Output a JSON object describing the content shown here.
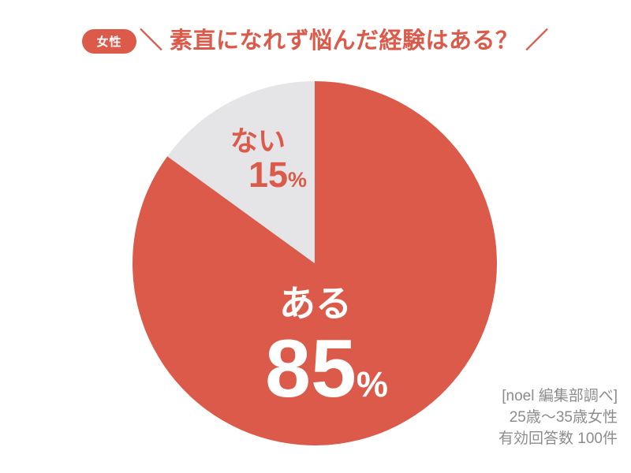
{
  "header": {
    "badge_label": "女性",
    "title": "＼ 素直になれず悩んだ経験はある？ ／"
  },
  "chart_data": {
    "type": "pie",
    "title": "素直になれず悩んだ経験はある？",
    "group": "女性",
    "start_angle_deg": 0,
    "direction": "clockwise",
    "slices": [
      {
        "label": "ある",
        "value": 85,
        "unit": "%",
        "color": "#dc5a4a",
        "label_color": "#ffffff"
      },
      {
        "label": "ない",
        "value": 15,
        "unit": "%",
        "color": "#e5e4e6",
        "label_color": "#dc5a4a"
      }
    ],
    "source": "[noel 編集部調べ]",
    "sample": "25歳～35歳女性",
    "valid_responses": "有効回答数 100件"
  },
  "footer": {
    "lines": [
      "[noel 編集部調べ]",
      "25歳～35歳女性",
      "有効回答数 100件"
    ]
  },
  "colors": {
    "accent_red": "#dc5a4a",
    "slice_gray": "#e5e4e6",
    "footer_gray": "#8c8c8c",
    "background": "#ffffff"
  }
}
